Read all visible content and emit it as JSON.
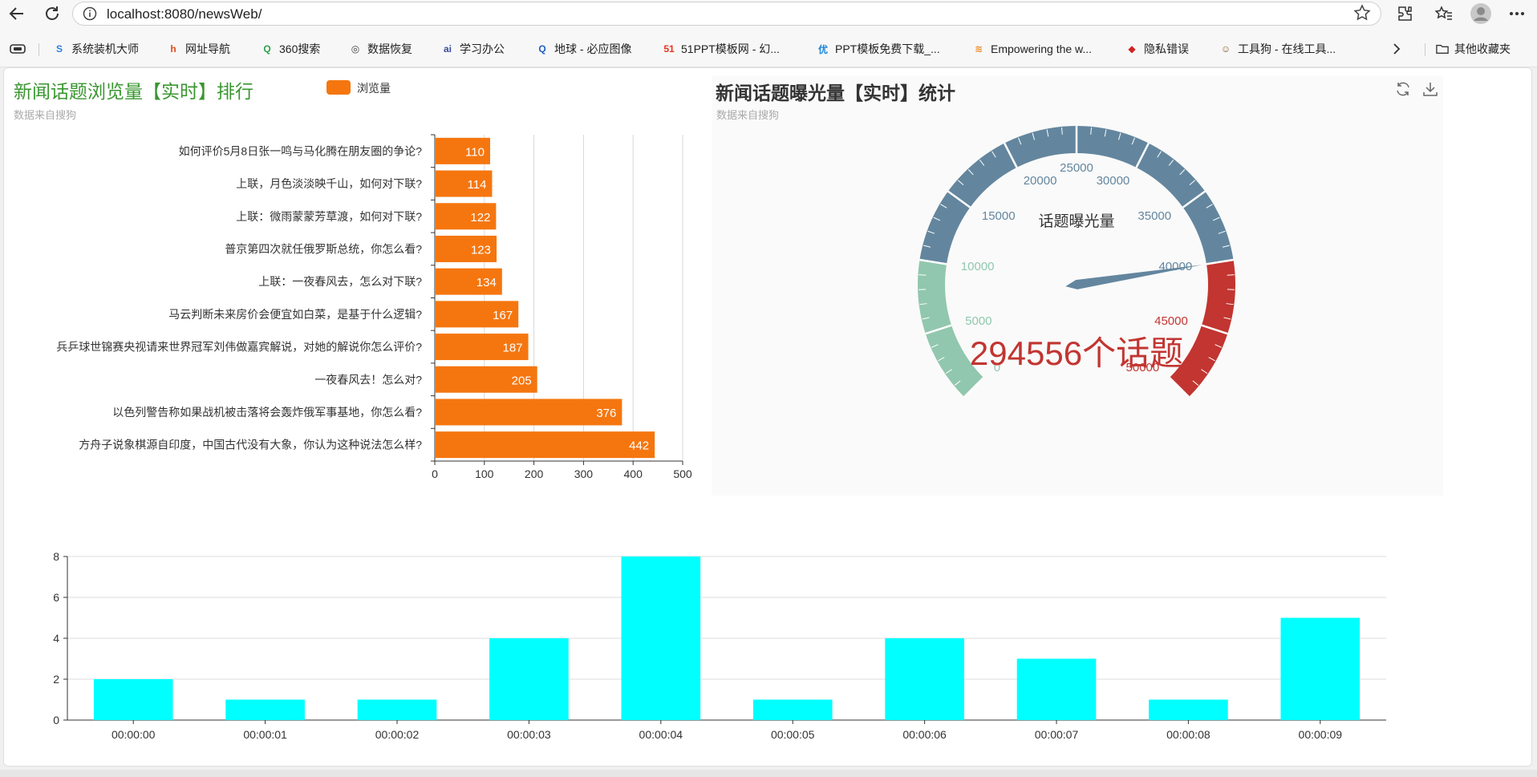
{
  "browser": {
    "url": "localhost:8080/newsWeb/",
    "bookmarks": [
      {
        "label": "系统装机大师",
        "icon": "S",
        "color": "#2e7de0"
      },
      {
        "label": "网址导航",
        "icon": "h",
        "color": "#e34b1c"
      },
      {
        "label": "360搜索",
        "icon": "Q",
        "color": "#2ba24c"
      },
      {
        "label": "数据恢复",
        "icon": "◎",
        "color": "#444444"
      },
      {
        "label": "学习办公",
        "icon": "ai",
        "color": "#3a4c9c"
      },
      {
        "label": "地球 - 必应图像",
        "icon": "Q",
        "color": "#1f5fbf"
      },
      {
        "label": "51PPT模板网 - 幻...",
        "icon": "51",
        "color": "#e8331d"
      },
      {
        "label": "PPT模板免费下载_...",
        "icon": "优",
        "color": "#1a86d8"
      },
      {
        "label": "Empowering the w...",
        "icon": "≋",
        "color": "#f08a24"
      },
      {
        "label": "隐私错误",
        "icon": "◆",
        "color": "#d42121"
      },
      {
        "label": "工具狗 - 在线工具...",
        "icon": "☺",
        "color": "#8a5a2b"
      }
    ],
    "other_bookmarks": "其他收藏夹"
  },
  "bar_panel": {
    "title": "新闻话题浏览量【实时】排行",
    "subtitle": "数据来自搜狗",
    "legend": "浏览量"
  },
  "gauge_panel": {
    "title": "新闻话题曝光量【实时】统计",
    "subtitle": "数据来自搜狗",
    "gauge_name": "话题曝光量",
    "detail": "294556个话题",
    "tick_labels": [
      "0",
      "5000",
      "10000",
      "15000",
      "20000",
      "25000",
      "30000",
      "35000",
      "40000",
      "45000",
      "50000"
    ]
  },
  "colors": {
    "bar": "#f5760f",
    "title_green": "#3a9630",
    "gauge_green": "#91c7ae",
    "gauge_blue": "#63869e",
    "gauge_red": "#c23531",
    "column": "#00ffff"
  },
  "chart_data": [
    {
      "type": "bar",
      "orientation": "horizontal",
      "title": "新闻话题浏览量【实时】排行",
      "legend": [
        "浏览量"
      ],
      "categories": [
        "方舟子说象棋源自印度，中国古代没有大象，你认为这种说法怎么样?",
        "以色列警告称如果战机被击落将会轰炸俄军事基地，你怎么看?",
        "一夜春风去！怎么对?",
        "兵乒球世锦赛央视请来世界冠军刘伟做嘉宾解说，对她的解说你怎么评价?",
        "马云判断未来房价会便宜如白菜，是基于什么逻辑?",
        "上联：一夜春风去，怎么对下联?",
        "普京第四次就任俄罗斯总统，你怎么看?",
        "上联：微雨蒙蒙芳草渡，如何对下联?",
        "上联，月色淡淡映千山，如何对下联?",
        "如何评价5月8日张一鸣与马化腾在朋友圈的争论?"
      ],
      "values": [
        442,
        376,
        205,
        187,
        167,
        134,
        123,
        122,
        114,
        110
      ],
      "xlim": [
        0,
        500
      ],
      "xticks": [
        0,
        100,
        200,
        300,
        400,
        500
      ]
    },
    {
      "type": "gauge",
      "title": "新闻话题曝光量【实时】统计",
      "name": "话题曝光量",
      "min": 0,
      "max": 50000,
      "value": 40000,
      "detail": "294556个话题",
      "bands": [
        {
          "to": 0.2,
          "color": "#91c7ae"
        },
        {
          "to": 0.8,
          "color": "#63869e"
        },
        {
          "to": 1.0,
          "color": "#c23531"
        }
      ]
    },
    {
      "type": "bar",
      "orientation": "vertical",
      "categories": [
        "00:00:00",
        "00:00:01",
        "00:00:02",
        "00:00:03",
        "00:00:04",
        "00:00:05",
        "00:00:06",
        "00:00:07",
        "00:00:08",
        "00:00:09"
      ],
      "values": [
        2,
        1,
        1,
        4,
        8,
        1,
        4,
        3,
        1,
        5
      ],
      "ylim": [
        0,
        8
      ],
      "yticks": [
        0,
        2,
        4,
        6,
        8
      ]
    }
  ]
}
